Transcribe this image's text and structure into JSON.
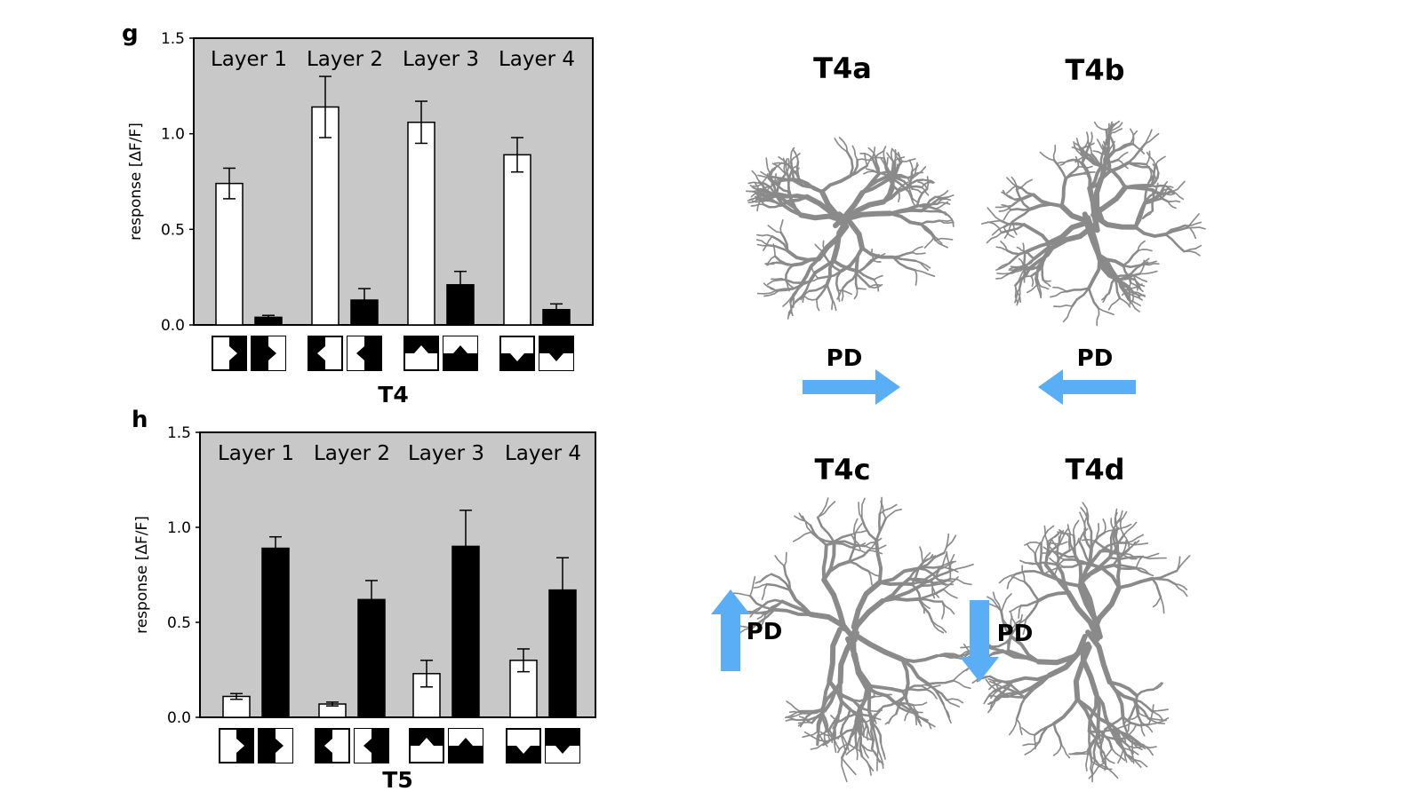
{
  "colors": {
    "plot_bg": "#c8c8c8",
    "pd_arrow": "#5aaef5",
    "neuron": "#8a8a8a"
  },
  "chart_data": [
    {
      "panel": "g",
      "type": "bar",
      "title": "T4",
      "ylabel": "response [ΔF/F]",
      "ylim": [
        0,
        1.5
      ],
      "yticks": [
        "0.0",
        "0.5",
        "1.0",
        "1.5"
      ],
      "categories": [
        "Layer 1",
        "Layer 2",
        "Layer 3",
        "Layer 4"
      ],
      "stimulus_directions": [
        "right",
        "left",
        "up",
        "down"
      ],
      "series": [
        {
          "polarity": "bright edge",
          "values": [
            0.74,
            1.14,
            1.06,
            0.89
          ],
          "errors": [
            0.08,
            0.16,
            0.11,
            0.09
          ]
        },
        {
          "polarity": "dark edge",
          "values": [
            0.04,
            0.13,
            0.21,
            0.08
          ],
          "errors": [
            0.01,
            0.06,
            0.07,
            0.03
          ]
        }
      ]
    },
    {
      "panel": "h",
      "type": "bar",
      "title": "T5",
      "ylabel": "response [ΔF/F]",
      "ylim": [
        0,
        1.5
      ],
      "yticks": [
        "0.0",
        "0.5",
        "1.0",
        "1.5"
      ],
      "categories": [
        "Layer 1",
        "Layer 2",
        "Layer 3",
        "Layer 4"
      ],
      "stimulus_directions": [
        "right",
        "left",
        "up",
        "down"
      ],
      "series": [
        {
          "polarity": "bright edge",
          "values": [
            0.11,
            0.07,
            0.23,
            0.3
          ],
          "errors": [
            0.015,
            0.01,
            0.07,
            0.06
          ]
        },
        {
          "polarity": "dark edge",
          "values": [
            0.89,
            0.62,
            0.9,
            0.67
          ],
          "errors": [
            0.06,
            0.1,
            0.19,
            0.17
          ]
        }
      ]
    }
  ],
  "neurons": [
    {
      "name": "T4a",
      "pd_label": "PD",
      "pd_direction": "right"
    },
    {
      "name": "T4b",
      "pd_label": "PD",
      "pd_direction": "left"
    },
    {
      "name": "T4c",
      "pd_label": "PD",
      "pd_direction": "up"
    },
    {
      "name": "T4d",
      "pd_label": "PD",
      "pd_direction": "down"
    }
  ]
}
